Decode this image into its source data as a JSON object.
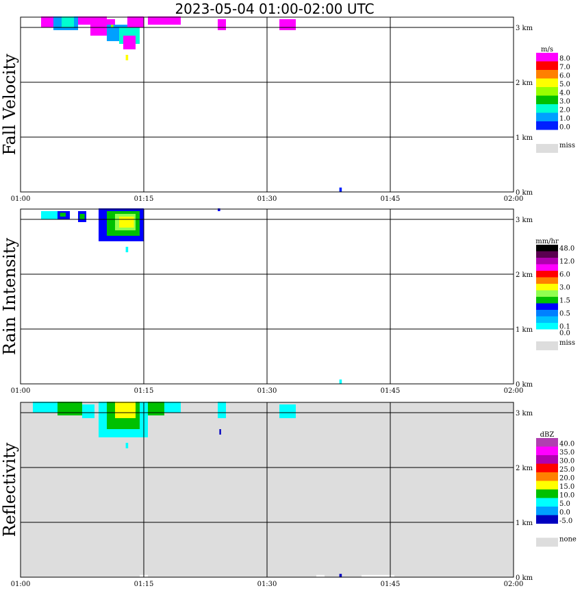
{
  "title": "2023-05-04   01:00-02:00 UTC",
  "chart_data": [
    {
      "type": "heatmap",
      "ylabel": "Fall Velocity",
      "background": "#ffffff",
      "x_ticks": [
        "01:00",
        "01:15",
        "01:30",
        "01:45",
        "02:00"
      ],
      "y_ticks": [
        "0 km",
        "1 km",
        "2 km",
        "3 km"
      ],
      "xlim_minutes": [
        0,
        60
      ],
      "ylim_km": [
        0,
        3.2
      ],
      "legend": {
        "unit": "m/s",
        "bins": [
          {
            "label": "8.0",
            "color": "#ff00ff"
          },
          {
            "label": "7.0",
            "color": "#ff0000"
          },
          {
            "label": "6.0",
            "color": "#ff8000"
          },
          {
            "label": "5.0",
            "color": "#ffff00"
          },
          {
            "label": "4.0",
            "color": "#99ff00"
          },
          {
            "label": "3.0",
            "color": "#00c000"
          },
          {
            "label": "2.0",
            "color": "#00ffd0"
          },
          {
            "label": "1.0",
            "color": "#00a0ff"
          },
          {
            "label": "0.0",
            "color": "#0020ff"
          },
          {
            "label": "",
            "color": "#ffffff"
          }
        ],
        "missing": {
          "label": "miss",
          "color": "#dddddd"
        }
      },
      "cells": [
        {
          "t": [
            2.5,
            5.0
          ],
          "z": [
            3.0,
            3.2
          ],
          "color": "#ff00ff"
        },
        {
          "t": [
            4.0,
            7.0
          ],
          "z": [
            2.95,
            3.2
          ],
          "color": "#00a0ff"
        },
        {
          "t": [
            5.0,
            6.5
          ],
          "z": [
            3.0,
            3.2
          ],
          "color": "#00ffd0"
        },
        {
          "t": [
            7.0,
            10.5
          ],
          "z": [
            3.05,
            3.2
          ],
          "color": "#ff00ff"
        },
        {
          "t": [
            8.5,
            11.5
          ],
          "z": [
            2.85,
            3.15
          ],
          "color": "#ff00ff"
        },
        {
          "t": [
            10.5,
            13.5
          ],
          "z": [
            2.75,
            3.05
          ],
          "color": "#00a0ff"
        },
        {
          "t": [
            12.0,
            14.5
          ],
          "z": [
            2.7,
            3.0
          ],
          "color": "#00ffd0"
        },
        {
          "t": [
            12.5,
            14.0
          ],
          "z": [
            2.6,
            2.85
          ],
          "color": "#ff00ff"
        },
        {
          "t": [
            13.0,
            15.0
          ],
          "z": [
            3.0,
            3.2
          ],
          "color": "#ff00ff"
        },
        {
          "t": [
            15.5,
            19.5
          ],
          "z": [
            3.05,
            3.2
          ],
          "color": "#ff00ff"
        },
        {
          "t": [
            24.0,
            25.0
          ],
          "z": [
            2.95,
            3.15
          ],
          "color": "#ff00ff"
        },
        {
          "t": [
            31.5,
            33.5
          ],
          "z": [
            2.95,
            3.15
          ],
          "color": "#ff00ff"
        },
        {
          "t": [
            12.8,
            13.1
          ],
          "z": [
            2.4,
            2.5
          ],
          "color": "#ffff00"
        },
        {
          "t": [
            11.0,
            11.3
          ],
          "z": [
            3.0,
            3.05
          ],
          "color": "#99ff00"
        },
        {
          "t": [
            38.8,
            39.1
          ],
          "z": [
            0.0,
            0.08
          ],
          "color": "#0020ff"
        }
      ]
    },
    {
      "type": "heatmap",
      "ylabel": "Rain Intensity",
      "background": "#ffffff",
      "x_ticks": [
        "01:00",
        "01:15",
        "01:30",
        "01:45",
        "02:00"
      ],
      "y_ticks": [
        "0 km",
        "1 km",
        "2 km",
        "3 km"
      ],
      "xlim_minutes": [
        0,
        60
      ],
      "ylim_km": [
        0,
        3.2
      ],
      "legend": {
        "unit": "mm/hr",
        "bins": [
          {
            "label": "48.0",
            "color": "#000000"
          },
          {
            "label": "",
            "color": "#5a0050"
          },
          {
            "label": "12.0",
            "color": "#b000b0"
          },
          {
            "label": "",
            "color": "#ff00ff"
          },
          {
            "label": "6.0",
            "color": "#ff0000"
          },
          {
            "label": "",
            "color": "#ff8000"
          },
          {
            "label": "3.0",
            "color": "#ffff00"
          },
          {
            "label": "",
            "color": "#90ff50"
          },
          {
            "label": "1.5",
            "color": "#00c000"
          },
          {
            "label": "",
            "color": "#0000ff"
          },
          {
            "label": "0.5",
            "color": "#0080ff"
          },
          {
            "label": "",
            "color": "#00c0ff"
          },
          {
            "label": "0.1",
            "color": "#00ffff"
          },
          {
            "label": "0.0",
            "color": "#ffffff"
          }
        ],
        "missing": {
          "label": "miss",
          "color": "#dddddd"
        }
      },
      "cells": [
        {
          "t": [
            2.5,
            4.5
          ],
          "z": [
            3.0,
            3.15
          ],
          "color": "#00ffff"
        },
        {
          "t": [
            4.5,
            6.0
          ],
          "z": [
            3.0,
            3.15
          ],
          "color": "#0000ff"
        },
        {
          "t": [
            4.8,
            5.5
          ],
          "z": [
            3.05,
            3.12
          ],
          "color": "#00c000"
        },
        {
          "t": [
            7.0,
            8.0
          ],
          "z": [
            2.95,
            3.15
          ],
          "color": "#0000ff"
        },
        {
          "t": [
            7.2,
            7.8
          ],
          "z": [
            3.0,
            3.1
          ],
          "color": "#00c000"
        },
        {
          "t": [
            9.5,
            15.0
          ],
          "z": [
            2.6,
            3.2
          ],
          "color": "#0000ff"
        },
        {
          "t": [
            10.5,
            14.5
          ],
          "z": [
            2.7,
            3.15
          ],
          "color": "#00c000"
        },
        {
          "t": [
            11.5,
            14.0
          ],
          "z": [
            2.8,
            3.1
          ],
          "color": "#90ff50"
        },
        {
          "t": [
            12.0,
            13.8
          ],
          "z": [
            2.85,
            3.05
          ],
          "color": "#ffff00"
        },
        {
          "t": [
            12.8,
            13.1
          ],
          "z": [
            2.4,
            2.5
          ],
          "color": "#00ffff"
        },
        {
          "t": [
            24.0,
            24.3
          ],
          "z": [
            3.15,
            3.2
          ],
          "color": "#0000ff"
        },
        {
          "t": [
            38.8,
            39.1
          ],
          "z": [
            0.0,
            0.08
          ],
          "color": "#00ffff"
        }
      ]
    },
    {
      "type": "heatmap",
      "ylabel": "Reflectivity",
      "background": "#dddddd",
      "x_ticks": [
        "01:00",
        "01:15",
        "01:30",
        "01:45",
        "02:00"
      ],
      "y_ticks": [
        "0 km",
        "1 km",
        "2 km",
        "3 km"
      ],
      "xlim_minutes": [
        0,
        60
      ],
      "ylim_km": [
        0,
        3.2
      ],
      "legend": {
        "unit": "dBZ",
        "bins": [
          {
            "label": "40.0",
            "color": "#b040b0"
          },
          {
            "label": "35.0",
            "color": "#ff00ff"
          },
          {
            "label": "30.0",
            "color": "#b000b0"
          },
          {
            "label": "25.0",
            "color": "#ff0000"
          },
          {
            "label": "20.0",
            "color": "#ff8000"
          },
          {
            "label": "15.0",
            "color": "#ffff00"
          },
          {
            "label": "10.0",
            "color": "#00c000"
          },
          {
            "label": "5.0",
            "color": "#00ffff"
          },
          {
            "label": "0.0",
            "color": "#00a0ff"
          },
          {
            "label": "-5.0",
            "color": "#0000c0"
          },
          {
            "label": "",
            "color": "#ffffff"
          }
        ],
        "missing": {
          "label": "none",
          "color": "#dddddd"
        }
      },
      "cells": [
        {
          "t": [
            1.5,
            4.5
          ],
          "z": [
            3.0,
            3.2
          ],
          "color": "#00ffff"
        },
        {
          "t": [
            4.5,
            7.5
          ],
          "z": [
            2.95,
            3.2
          ],
          "color": "#00c000"
        },
        {
          "t": [
            7.5,
            9.0
          ],
          "z": [
            2.9,
            3.15
          ],
          "color": "#00ffff"
        },
        {
          "t": [
            9.5,
            15.5
          ],
          "z": [
            2.55,
            3.2
          ],
          "color": "#00ffff"
        },
        {
          "t": [
            10.5,
            14.5
          ],
          "z": [
            2.7,
            3.2
          ],
          "color": "#00c000"
        },
        {
          "t": [
            11.5,
            14.0
          ],
          "z": [
            2.9,
            3.2
          ],
          "color": "#ffff00"
        },
        {
          "t": [
            15.5,
            17.5
          ],
          "z": [
            2.95,
            3.2
          ],
          "color": "#00c000"
        },
        {
          "t": [
            17.5,
            19.5
          ],
          "z": [
            3.0,
            3.2
          ],
          "color": "#00ffff"
        },
        {
          "t": [
            24.0,
            25.0
          ],
          "z": [
            2.9,
            3.2
          ],
          "color": "#00ffff"
        },
        {
          "t": [
            31.5,
            33.5
          ],
          "z": [
            2.9,
            3.15
          ],
          "color": "#00ffff"
        },
        {
          "t": [
            12.8,
            13.1
          ],
          "z": [
            2.35,
            2.45
          ],
          "color": "#00ffff"
        },
        {
          "t": [
            24.2,
            24.4
          ],
          "z": [
            2.6,
            2.7
          ],
          "color": "#0000c0"
        },
        {
          "t": [
            14.5,
            15.5
          ],
          "z": [
            0.0,
            0.04
          ],
          "color": "#ffffff"
        },
        {
          "t": [
            36.0,
            37.0
          ],
          "z": [
            0.0,
            0.04
          ],
          "color": "#ffffff"
        },
        {
          "t": [
            41.5,
            45.5
          ],
          "z": [
            0.0,
            0.04
          ],
          "color": "#ffffff"
        },
        {
          "t": [
            38.8,
            39.1
          ],
          "z": [
            0.0,
            0.06
          ],
          "color": "#0000c0"
        }
      ]
    }
  ]
}
